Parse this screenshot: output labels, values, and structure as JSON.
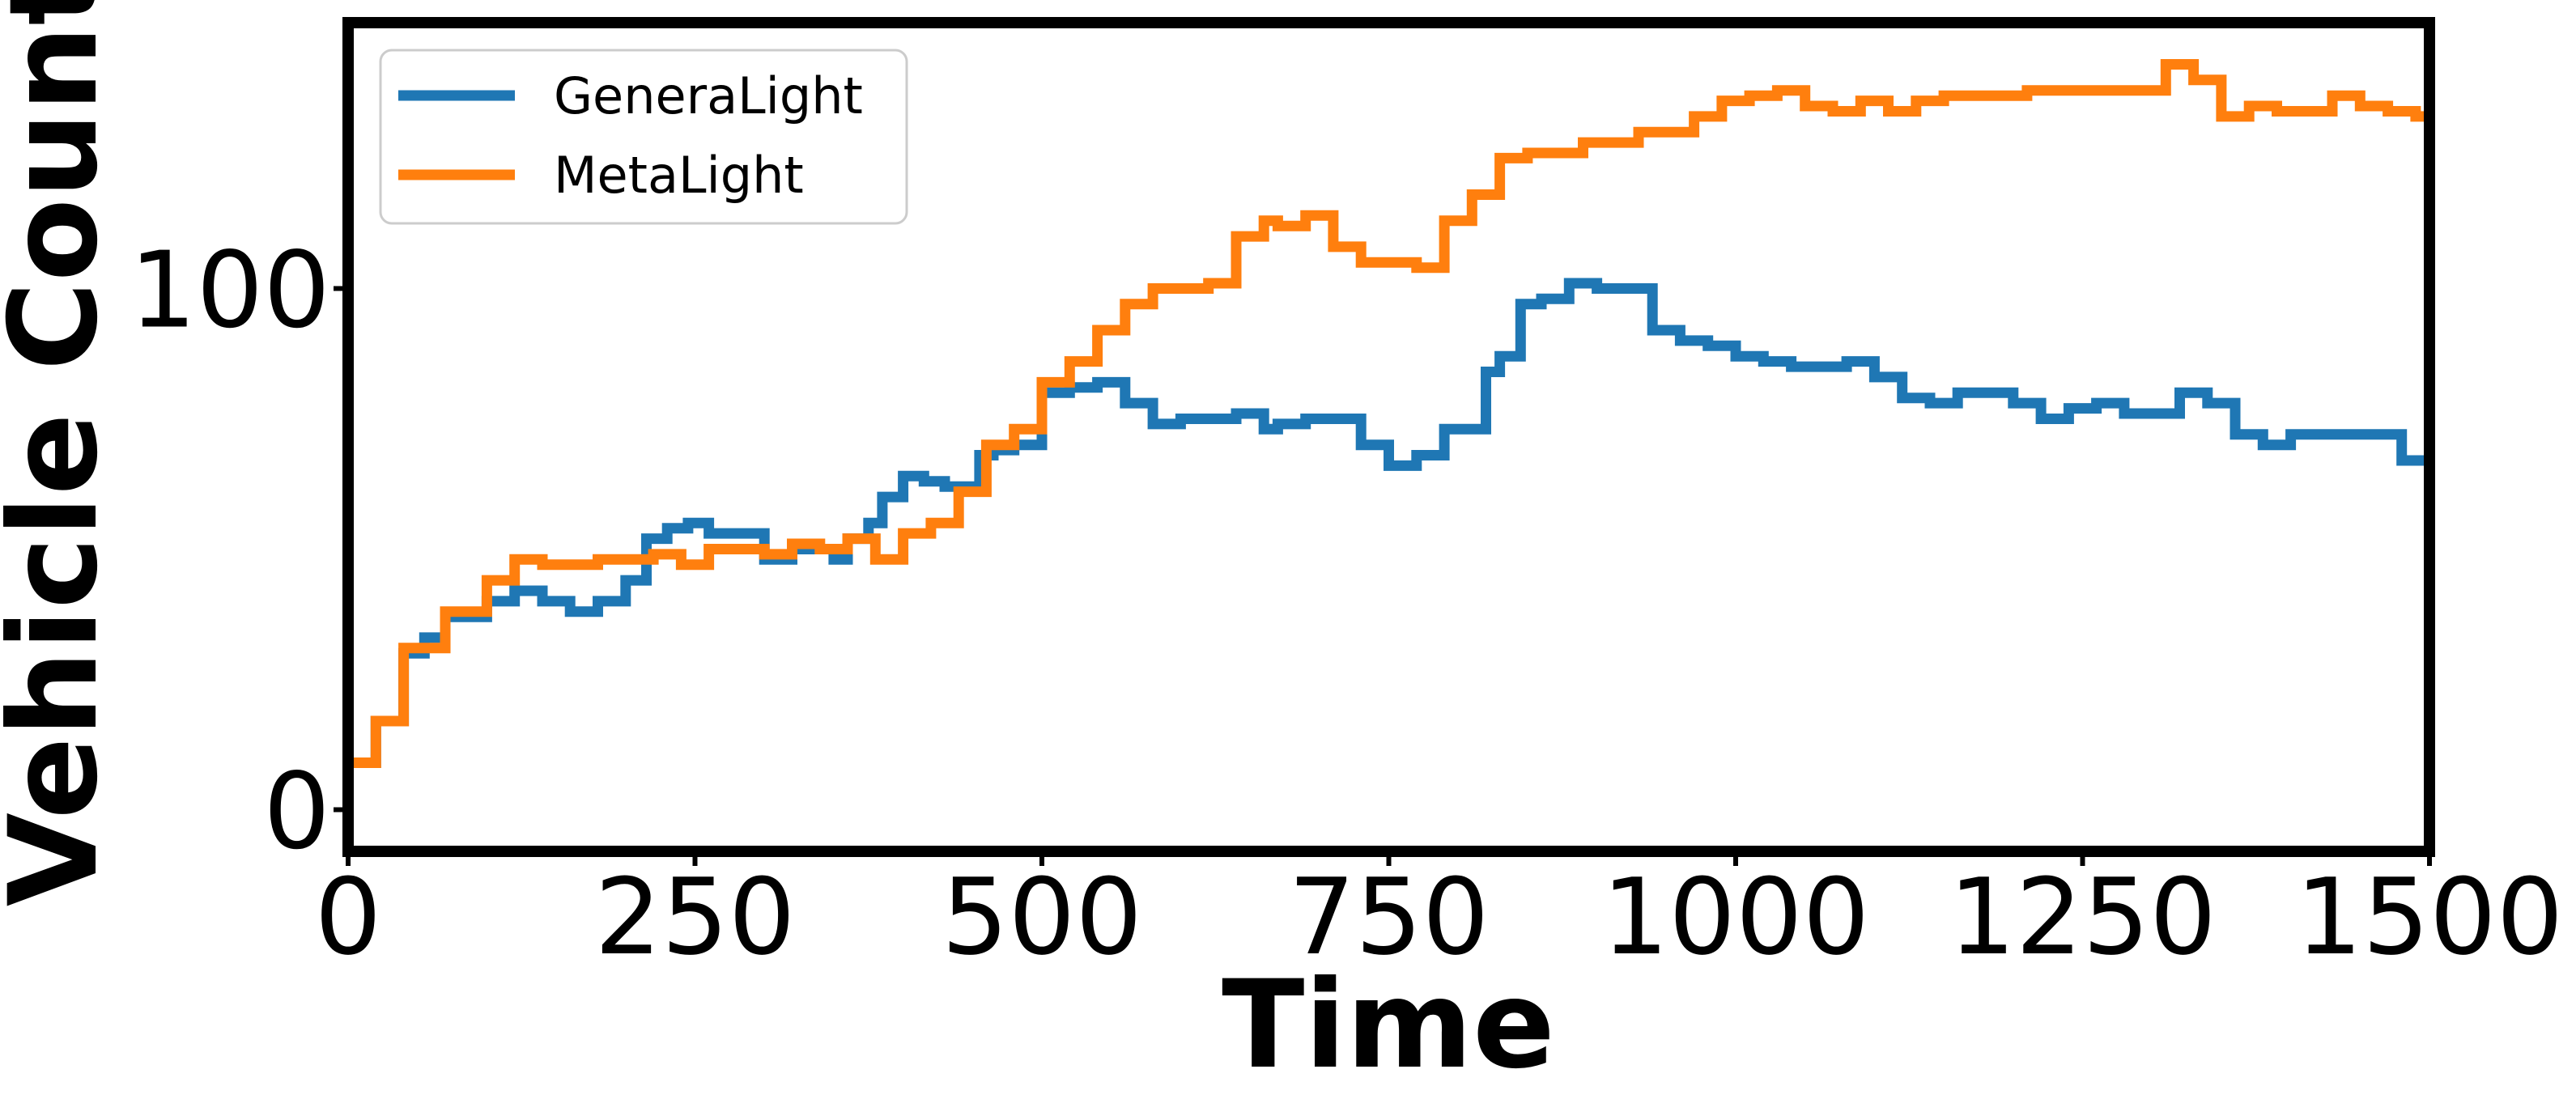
{
  "chart_data": {
    "type": "line",
    "title": "",
    "xlabel": "Time",
    "ylabel": "Vehicle Count",
    "xlim": [
      0,
      1500
    ],
    "ylim": [
      -8,
      151
    ],
    "xticks": [
      0,
      250,
      500,
      750,
      1000,
      1250,
      1500
    ],
    "xtick_labels": [
      "0",
      "250",
      "500",
      "750",
      "1000",
      "1250",
      "1500"
    ],
    "yticks": [
      0,
      100
    ],
    "ytick_labels": [
      "0",
      "100"
    ],
    "grid": false,
    "legend_position": "upper-left",
    "step": true,
    "series": [
      {
        "name": "GeneraLight",
        "color": "#1f77b4",
        "x": [
          0,
          20,
          40,
          55,
          70,
          100,
          120,
          140,
          160,
          180,
          200,
          215,
          230,
          245,
          260,
          300,
          320,
          350,
          360,
          375,
          385,
          400,
          415,
          430,
          455,
          465,
          480,
          500,
          520,
          540,
          560,
          580,
          600,
          620,
          640,
          660,
          670,
          690,
          710,
          730,
          750,
          770,
          790,
          800,
          820,
          830,
          845,
          860,
          880,
          900,
          920,
          940,
          960,
          980,
          1000,
          1020,
          1040,
          1060,
          1080,
          1100,
          1120,
          1140,
          1160,
          1180,
          1200,
          1220,
          1240,
          1260,
          1280,
          1300,
          1320,
          1340,
          1360,
          1380,
          1400,
          1420,
          1440,
          1460,
          1480,
          1500
        ],
        "y": [
          9,
          17,
          30,
          33,
          37,
          40,
          42,
          40,
          38,
          40,
          44,
          52,
          54,
          55,
          53,
          48,
          50,
          48,
          52,
          55,
          60,
          64,
          63,
          62,
          68,
          69,
          70,
          80,
          81,
          82,
          78,
          74,
          75,
          75,
          76,
          73,
          74,
          75,
          75,
          70,
          66,
          68,
          73,
          73,
          84,
          87,
          97,
          98,
          101,
          100,
          100,
          92,
          90,
          89,
          87,
          86,
          85,
          85,
          86,
          83,
          79,
          78,
          80,
          80,
          78,
          75,
          77,
          78,
          76,
          76,
          80,
          78,
          72,
          70,
          72,
          72,
          72,
          72,
          67,
          66
        ]
      },
      {
        "name": "MetaLight",
        "color": "#ff7f0e",
        "x": [
          0,
          20,
          40,
          55,
          70,
          100,
          120,
          140,
          160,
          180,
          200,
          220,
          240,
          260,
          280,
          300,
          320,
          340,
          360,
          380,
          400,
          420,
          440,
          460,
          480,
          500,
          520,
          540,
          560,
          580,
          600,
          620,
          640,
          660,
          670,
          690,
          710,
          730,
          750,
          770,
          790,
          810,
          830,
          850,
          870,
          890,
          910,
          930,
          950,
          970,
          990,
          1010,
          1030,
          1050,
          1070,
          1090,
          1110,
          1130,
          1150,
          1170,
          1190,
          1210,
          1230,
          1250,
          1270,
          1290,
          1310,
          1330,
          1350,
          1370,
          1390,
          1410,
          1430,
          1450,
          1470,
          1490,
          1500
        ],
        "y": [
          9,
          17,
          31,
          31,
          38,
          44,
          48,
          47,
          47,
          48,
          48,
          49,
          47,
          50,
          50,
          49,
          51,
          50,
          52,
          48,
          53,
          55,
          61,
          70,
          73,
          82,
          86,
          92,
          97,
          100,
          100,
          101,
          110,
          113,
          112,
          114,
          108,
          105,
          105,
          104,
          113,
          118,
          125,
          126,
          126,
          128,
          128,
          130,
          130,
          133,
          136,
          137,
          138,
          135,
          134,
          136,
          134,
          136,
          137,
          137,
          137,
          138,
          138,
          138,
          138,
          138,
          143,
          140,
          133,
          135,
          134,
          134,
          137,
          135,
          134,
          133,
          133
        ]
      }
    ]
  }
}
